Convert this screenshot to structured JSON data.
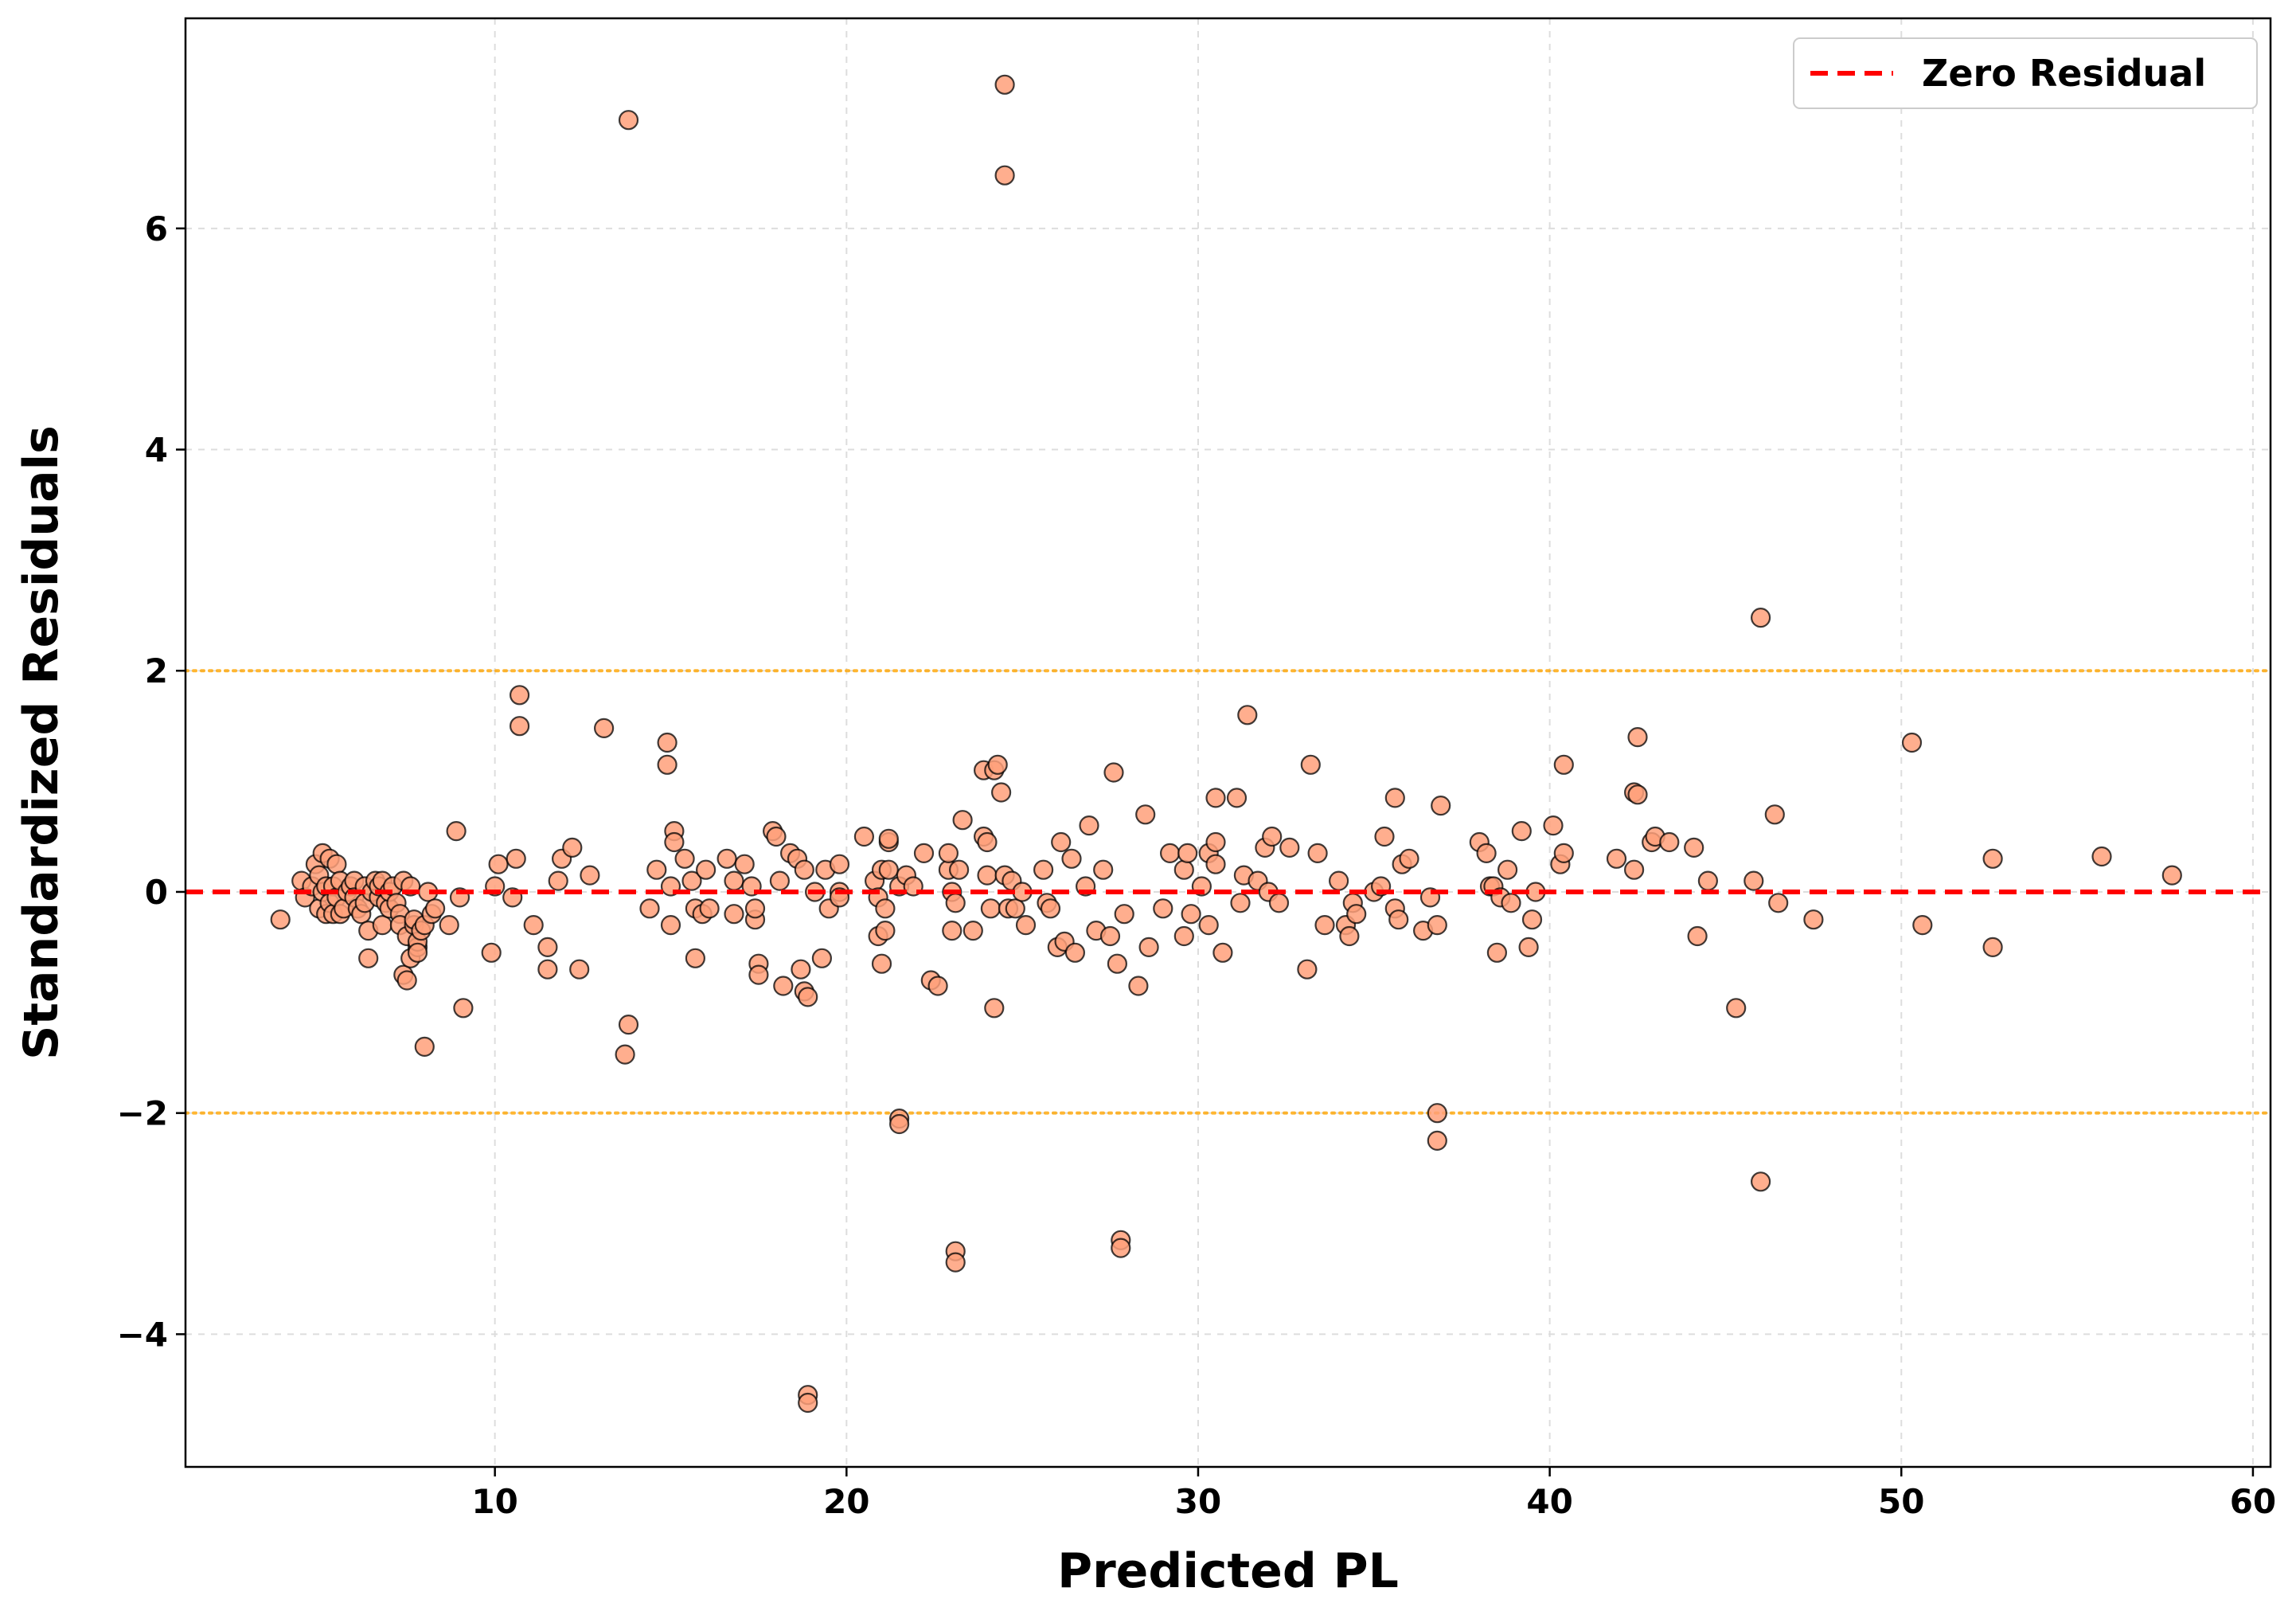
{
  "chart_data": {
    "type": "scatter",
    "title": "",
    "xlabel": "Predicted PL",
    "ylabel": "Standardized Residuals",
    "xlim": [
      1.2,
      60.5
    ],
    "ylim": [
      -5.2,
      7.9
    ],
    "xticks": [
      10,
      20,
      30,
      40,
      50,
      60
    ],
    "yticks": [
      -4,
      -2,
      0,
      2,
      4,
      6
    ],
    "xtick_labels": [
      "10",
      "20",
      "30",
      "40",
      "50",
      "60"
    ],
    "ytick_labels": [
      "−4",
      "−2",
      "0",
      "2",
      "4",
      "6"
    ],
    "grid": true,
    "legend": {
      "position": "top-right",
      "entries": [
        "Zero Residual"
      ]
    },
    "colors": {
      "points": "#FFA07A",
      "point_edge": "#000000",
      "zero_line": "#ff0000",
      "threshold_line": "#FFA500",
      "grid": "#dddddd"
    },
    "reference_lines": [
      {
        "name": "Zero Residual",
        "y": 0,
        "style": "dashed",
        "color": "#ff0000"
      },
      {
        "name": "upper-threshold",
        "y": 2,
        "style": "dotted",
        "color": "#FFA500"
      },
      {
        "name": "lower-threshold",
        "y": -2,
        "style": "dotted",
        "color": "#FFA500"
      }
    ],
    "series": [
      {
        "name": "residuals",
        "points": [
          [
            3.9,
            -0.25
          ],
          [
            4.5,
            0.1
          ],
          [
            4.6,
            -0.05
          ],
          [
            4.8,
            0.05
          ],
          [
            4.9,
            0.25
          ],
          [
            5.0,
            -0.15
          ],
          [
            5.0,
            0.15
          ],
          [
            5.1,
            0.35
          ],
          [
            5.1,
            0.0
          ],
          [
            5.2,
            -0.2
          ],
          [
            5.2,
            0.05
          ],
          [
            5.3,
            -0.1
          ],
          [
            5.3,
            0.3
          ],
          [
            5.4,
            -0.2
          ],
          [
            5.4,
            0.05
          ],
          [
            5.5,
            0.25
          ],
          [
            5.5,
            -0.05
          ],
          [
            5.6,
            -0.2
          ],
          [
            5.6,
            0.1
          ],
          [
            5.7,
            -0.15
          ],
          [
            5.8,
            0.0
          ],
          [
            5.9,
            0.05
          ],
          [
            6.0,
            0.1
          ],
          [
            6.0,
            -0.05
          ],
          [
            6.1,
            -0.15
          ],
          [
            6.2,
            -0.2
          ],
          [
            6.3,
            0.05
          ],
          [
            6.3,
            -0.1
          ],
          [
            6.4,
            -0.35
          ],
          [
            6.4,
            -0.6
          ],
          [
            6.5,
            0.0
          ],
          [
            6.6,
            0.1
          ],
          [
            6.7,
            -0.05
          ],
          [
            6.7,
            0.05
          ],
          [
            6.8,
            -0.3
          ],
          [
            6.8,
            0.1
          ],
          [
            6.9,
            -0.1
          ],
          [
            7.0,
            -0.15
          ],
          [
            7.0,
            0.0
          ],
          [
            7.1,
            0.05
          ],
          [
            7.2,
            -0.1
          ],
          [
            7.3,
            -0.2
          ],
          [
            7.3,
            -0.3
          ],
          [
            7.4,
            -0.75
          ],
          [
            7.4,
            0.1
          ],
          [
            7.5,
            -0.4
          ],
          [
            7.5,
            -0.8
          ],
          [
            7.6,
            -0.6
          ],
          [
            7.6,
            0.05
          ],
          [
            7.7,
            -0.3
          ],
          [
            7.7,
            -0.25
          ],
          [
            7.8,
            -0.5
          ],
          [
            7.8,
            -0.45
          ],
          [
            7.8,
            -0.55
          ],
          [
            7.9,
            -0.35
          ],
          [
            8.0,
            -0.3
          ],
          [
            8.0,
            -1.4
          ],
          [
            8.1,
            0.0
          ],
          [
            8.2,
            -0.2
          ],
          [
            8.3,
            -0.15
          ],
          [
            8.7,
            -0.3
          ],
          [
            8.9,
            0.55
          ],
          [
            9.0,
            -0.05
          ],
          [
            9.1,
            -1.05
          ],
          [
            9.9,
            -0.55
          ],
          [
            10.0,
            0.05
          ],
          [
            10.1,
            0.25
          ],
          [
            10.5,
            -0.05
          ],
          [
            10.6,
            0.3
          ],
          [
            10.7,
            1.5
          ],
          [
            10.7,
            1.78
          ],
          [
            11.1,
            -0.3
          ],
          [
            11.5,
            -0.5
          ],
          [
            11.5,
            -0.7
          ],
          [
            11.8,
            0.1
          ],
          [
            11.9,
            0.3
          ],
          [
            12.2,
            0.4
          ],
          [
            12.4,
            -0.7
          ],
          [
            12.7,
            0.15
          ],
          [
            13.1,
            1.48
          ],
          [
            13.7,
            -1.47
          ],
          [
            13.8,
            -1.2
          ],
          [
            13.8,
            6.98
          ],
          [
            14.4,
            -0.15
          ],
          [
            14.6,
            0.2
          ],
          [
            14.9,
            1.35
          ],
          [
            14.9,
            1.15
          ],
          [
            15.0,
            0.05
          ],
          [
            15.0,
            -0.3
          ],
          [
            15.1,
            0.55
          ],
          [
            15.1,
            0.45
          ],
          [
            15.4,
            0.3
          ],
          [
            15.6,
            0.1
          ],
          [
            15.7,
            -0.15
          ],
          [
            15.7,
            -0.6
          ],
          [
            15.9,
            -0.2
          ],
          [
            16.0,
            0.2
          ],
          [
            16.1,
            -0.15
          ],
          [
            16.6,
            0.3
          ],
          [
            16.8,
            -0.2
          ],
          [
            16.8,
            0.1
          ],
          [
            17.1,
            0.25
          ],
          [
            17.3,
            0.05
          ],
          [
            17.4,
            -0.25
          ],
          [
            17.4,
            -0.15
          ],
          [
            17.5,
            -0.65
          ],
          [
            17.5,
            -0.75
          ],
          [
            17.9,
            0.55
          ],
          [
            18.0,
            0.5
          ],
          [
            18.1,
            0.1
          ],
          [
            18.2,
            -0.85
          ],
          [
            18.4,
            0.35
          ],
          [
            18.6,
            0.3
          ],
          [
            18.7,
            -0.7
          ],
          [
            18.8,
            -0.9
          ],
          [
            18.8,
            0.2
          ],
          [
            18.9,
            -0.95
          ],
          [
            18.9,
            -4.55
          ],
          [
            18.9,
            -4.62
          ],
          [
            19.1,
            0.0
          ],
          [
            19.3,
            -0.6
          ],
          [
            19.4,
            0.2
          ],
          [
            19.5,
            -0.15
          ],
          [
            19.8,
            0.0
          ],
          [
            19.8,
            -0.05
          ],
          [
            19.8,
            0.25
          ],
          [
            20.5,
            0.5
          ],
          [
            20.8,
            0.1
          ],
          [
            20.9,
            -0.05
          ],
          [
            20.9,
            -0.4
          ],
          [
            21.0,
            -0.65
          ],
          [
            21.0,
            0.2
          ],
          [
            21.1,
            -0.35
          ],
          [
            21.1,
            -0.15
          ],
          [
            21.2,
            0.45
          ],
          [
            21.2,
            0.48
          ],
          [
            21.2,
            0.2
          ],
          [
            21.5,
            -2.05
          ],
          [
            21.5,
            -2.1
          ],
          [
            21.5,
            0.05
          ],
          [
            21.7,
            0.15
          ],
          [
            21.9,
            0.05
          ],
          [
            22.2,
            0.35
          ],
          [
            22.4,
            -0.8
          ],
          [
            22.6,
            -0.85
          ],
          [
            22.9,
            0.2
          ],
          [
            22.9,
            0.35
          ],
          [
            23.0,
            0.0
          ],
          [
            23.0,
            -0.35
          ],
          [
            23.1,
            -0.1
          ],
          [
            23.1,
            -3.25
          ],
          [
            23.1,
            -3.35
          ],
          [
            23.2,
            0.2
          ],
          [
            23.3,
            0.65
          ],
          [
            23.6,
            -0.35
          ],
          [
            23.9,
            0.5
          ],
          [
            23.9,
            1.1
          ],
          [
            24.0,
            0.15
          ],
          [
            24.0,
            0.45
          ],
          [
            24.1,
            -0.15
          ],
          [
            24.2,
            -1.05
          ],
          [
            24.2,
            1.1
          ],
          [
            24.3,
            1.15
          ],
          [
            24.4,
            0.9
          ],
          [
            24.5,
            7.3
          ],
          [
            24.5,
            6.48
          ],
          [
            24.5,
            0.15
          ],
          [
            24.6,
            -0.15
          ],
          [
            24.7,
            0.1
          ],
          [
            24.8,
            -0.15
          ],
          [
            25.0,
            0.0
          ],
          [
            25.1,
            -0.3
          ],
          [
            25.6,
            0.2
          ],
          [
            25.7,
            -0.1
          ],
          [
            25.8,
            -0.15
          ],
          [
            26.0,
            -0.5
          ],
          [
            26.1,
            0.45
          ],
          [
            26.2,
            -0.45
          ],
          [
            26.4,
            0.3
          ],
          [
            26.5,
            -0.55
          ],
          [
            26.8,
            0.05
          ],
          [
            26.9,
            0.6
          ],
          [
            27.1,
            -0.35
          ],
          [
            27.3,
            0.2
          ],
          [
            27.5,
            -0.4
          ],
          [
            27.6,
            1.08
          ],
          [
            27.7,
            -0.65
          ],
          [
            27.8,
            -3.15
          ],
          [
            27.8,
            -3.22
          ],
          [
            27.9,
            -0.2
          ],
          [
            28.3,
            -0.85
          ],
          [
            28.5,
            0.7
          ],
          [
            28.6,
            -0.5
          ],
          [
            29.0,
            -0.15
          ],
          [
            29.2,
            0.35
          ],
          [
            29.6,
            -0.4
          ],
          [
            29.6,
            0.2
          ],
          [
            29.7,
            0.35
          ],
          [
            29.8,
            -0.2
          ],
          [
            30.1,
            0.05
          ],
          [
            30.3,
            0.35
          ],
          [
            30.3,
            -0.3
          ],
          [
            30.5,
            0.85
          ],
          [
            30.5,
            0.45
          ],
          [
            30.5,
            0.25
          ],
          [
            30.7,
            -0.55
          ],
          [
            31.1,
            0.85
          ],
          [
            31.2,
            -0.1
          ],
          [
            31.3,
            0.15
          ],
          [
            31.4,
            1.6
          ],
          [
            31.7,
            0.1
          ],
          [
            31.9,
            0.4
          ],
          [
            32.0,
            0.0
          ],
          [
            32.1,
            0.5
          ],
          [
            32.3,
            -0.1
          ],
          [
            32.6,
            0.4
          ],
          [
            33.1,
            -0.7
          ],
          [
            33.2,
            1.15
          ],
          [
            33.4,
            0.35
          ],
          [
            33.6,
            -0.3
          ],
          [
            34.0,
            0.1
          ],
          [
            34.2,
            -0.3
          ],
          [
            34.3,
            -0.4
          ],
          [
            34.4,
            -0.1
          ],
          [
            34.5,
            -0.2
          ],
          [
            35.0,
            0.0
          ],
          [
            35.2,
            0.05
          ],
          [
            35.3,
            0.5
          ],
          [
            35.6,
            -0.15
          ],
          [
            35.7,
            -0.25
          ],
          [
            35.6,
            0.85
          ],
          [
            35.8,
            0.25
          ],
          [
            36.0,
            0.3
          ],
          [
            36.4,
            -0.35
          ],
          [
            36.6,
            -0.05
          ],
          [
            36.8,
            -2.0
          ],
          [
            36.8,
            -2.25
          ],
          [
            36.8,
            -0.3
          ],
          [
            36.9,
            0.78
          ],
          [
            38.0,
            0.45
          ],
          [
            38.2,
            0.35
          ],
          [
            38.3,
            0.05
          ],
          [
            38.4,
            0.05
          ],
          [
            38.5,
            -0.55
          ],
          [
            38.6,
            -0.05
          ],
          [
            38.8,
            0.2
          ],
          [
            38.9,
            -0.1
          ],
          [
            39.2,
            0.55
          ],
          [
            39.4,
            -0.5
          ],
          [
            39.5,
            -0.25
          ],
          [
            39.6,
            0.0
          ],
          [
            40.1,
            0.6
          ],
          [
            40.3,
            0.25
          ],
          [
            40.4,
            0.35
          ],
          [
            40.4,
            1.15
          ],
          [
            41.9,
            0.3
          ],
          [
            42.4,
            0.2
          ],
          [
            42.4,
            0.9
          ],
          [
            42.5,
            1.4
          ],
          [
            42.5,
            0.88
          ],
          [
            42.9,
            0.45
          ],
          [
            43.0,
            0.5
          ],
          [
            43.4,
            0.45
          ],
          [
            44.1,
            0.4
          ],
          [
            44.2,
            -0.4
          ],
          [
            44.5,
            0.1
          ],
          [
            45.3,
            -1.05
          ],
          [
            45.8,
            0.1
          ],
          [
            46.0,
            2.48
          ],
          [
            46.0,
            -2.62
          ],
          [
            46.4,
            0.7
          ],
          [
            46.5,
            -0.1
          ],
          [
            47.5,
            -0.25
          ],
          [
            50.3,
            1.35
          ],
          [
            50.6,
            -0.3
          ],
          [
            52.6,
            -0.5
          ],
          [
            52.6,
            0.3
          ],
          [
            55.7,
            0.32
          ],
          [
            57.7,
            0.15
          ]
        ]
      }
    ]
  }
}
